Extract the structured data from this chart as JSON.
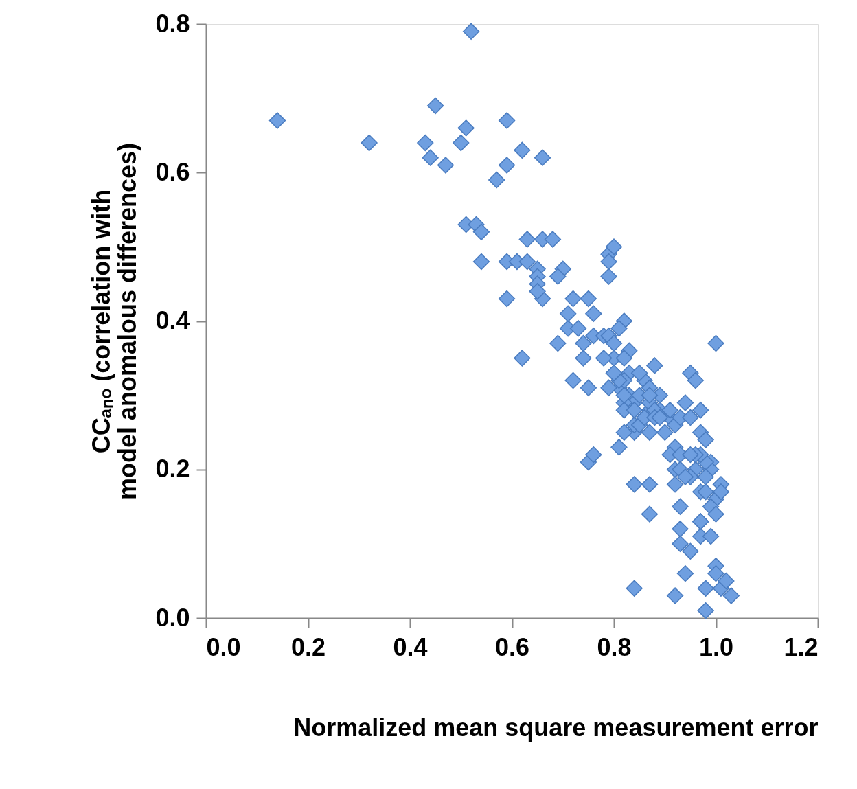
{
  "chart_data": {
    "type": "scatter",
    "xlabel": "Normalized mean square measurement error",
    "ylabel": "CCₐₙₒ (correlation with model anomalous differences)",
    "marker": "diamond",
    "grid": false,
    "xlim": [
      0.0,
      1.2
    ],
    "xticks": [
      {
        "value": 0,
        "label": "0.0"
      },
      0.2,
      0.4,
      0.6,
      0.8,
      {
        "value": 1,
        "label": "1.0"
      },
      1.2
    ],
    "ylim": [
      0.0,
      0.8
    ],
    "yticks": [
      {
        "value": 0,
        "label": "0.0"
      },
      0.2,
      0.4,
      0.6,
      0.8
    ],
    "series": [
      {
        "color": "#6f9fe0",
        "x": [
          0.14,
          0.32,
          0.52,
          0.45,
          0.43,
          0.44,
          0.47,
          0.5,
          0.51,
          0.59,
          0.59,
          0.62,
          0.66,
          0.57,
          0.51,
          0.53,
          0.54,
          0.54,
          0.59,
          0.59,
          0.61,
          0.63,
          0.63,
          0.65,
          0.66,
          0.68,
          0.7,
          0.69,
          0.65,
          0.65,
          0.66,
          0.65,
          0.62,
          0.69,
          0.71,
          0.72,
          0.71,
          0.75,
          0.74,
          0.72,
          0.74,
          0.76,
          0.76,
          0.73,
          0.78,
          0.79,
          0.8,
          0.79,
          0.79,
          0.79,
          0.82,
          0.81,
          0.8,
          0.8,
          0.78,
          0.81,
          0.79,
          0.83,
          0.83,
          0.81,
          0.75,
          0.76,
          0.75,
          0.82,
          0.82,
          0.83,
          0.84,
          0.85,
          0.86,
          0.87,
          0.89,
          0.88,
          0.89,
          0.91,
          0.91,
          0.92,
          0.93,
          0.87,
          0.85,
          0.84,
          0.84,
          0.87,
          0.87,
          0.84,
          0.95,
          0.96,
          0.97,
          0.97,
          0.98,
          1.0,
          0.99,
          1.01,
          1.0,
          0.95,
          0.94,
          0.92,
          0.91,
          0.93,
          0.92,
          0.93,
          0.92,
          0.93,
          0.93,
          0.93,
          0.92,
          0.94,
          0.95,
          0.96,
          0.95,
          0.97,
          0.97,
          0.97,
          0.98,
          0.99,
          0.98,
          0.99,
          0.99,
          0.98,
          0.97,
          0.96,
          0.95,
          0.98,
          0.98,
          1.0,
          1.0,
          1.01,
          1.02,
          1.03,
          1.0,
          1.01,
          0.94,
          0.97,
          0.82,
          0.82,
          0.84,
          0.82,
          0.85,
          0.87,
          0.84,
          0.86,
          0.88,
          0.88,
          0.81,
          0.8,
          0.82,
          0.89,
          0.9,
          0.87,
          0.87,
          0.8
        ],
        "values": [
          0.67,
          0.64,
          0.79,
          0.69,
          0.64,
          0.62,
          0.61,
          0.64,
          0.66,
          0.67,
          0.61,
          0.63,
          0.62,
          0.59,
          0.53,
          0.53,
          0.52,
          0.48,
          0.48,
          0.43,
          0.48,
          0.51,
          0.48,
          0.47,
          0.51,
          0.51,
          0.47,
          0.46,
          0.46,
          0.45,
          0.43,
          0.44,
          0.35,
          0.37,
          0.39,
          0.43,
          0.41,
          0.43,
          0.35,
          0.32,
          0.37,
          0.38,
          0.41,
          0.39,
          0.38,
          0.49,
          0.5,
          0.46,
          0.48,
          0.38,
          0.4,
          0.39,
          0.37,
          0.35,
          0.35,
          0.31,
          0.31,
          0.36,
          0.33,
          0.23,
          0.21,
          0.22,
          0.31,
          0.35,
          0.32,
          0.3,
          0.29,
          0.3,
          0.32,
          0.31,
          0.3,
          0.34,
          0.28,
          0.27,
          0.28,
          0.26,
          0.27,
          0.28,
          0.33,
          0.25,
          0.18,
          0.18,
          0.14,
          0.04,
          0.33,
          0.32,
          0.28,
          0.25,
          0.24,
          0.37,
          0.21,
          0.18,
          0.16,
          0.27,
          0.29,
          0.23,
          0.22,
          0.22,
          0.2,
          0.2,
          0.18,
          0.15,
          0.12,
          0.1,
          0.03,
          0.06,
          0.09,
          0.2,
          0.19,
          0.17,
          0.13,
          0.11,
          0.17,
          0.2,
          0.21,
          0.11,
          0.15,
          0.19,
          0.22,
          0.22,
          0.22,
          0.01,
          0.04,
          0.07,
          0.06,
          0.04,
          0.05,
          0.03,
          0.14,
          0.17,
          0.19,
          0.13,
          0.29,
          0.28,
          0.26,
          0.25,
          0.26,
          0.29,
          0.28,
          0.27,
          0.28,
          0.27,
          0.32,
          0.33,
          0.3,
          0.27,
          0.25,
          0.25,
          0.3,
          0.33
        ]
      }
    ]
  }
}
